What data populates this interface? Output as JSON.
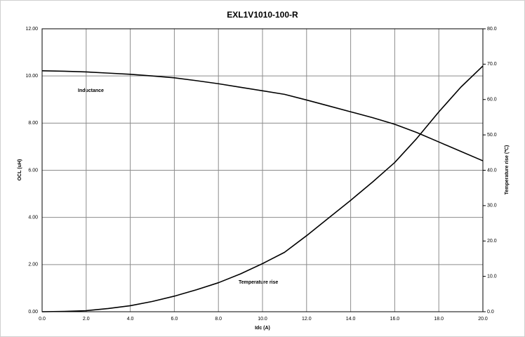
{
  "chart_data": {
    "type": "line",
    "title": "EXL1V1010-100-R",
    "x_label": "Idc (A)",
    "y_label": "OCL (uH)",
    "y2_label": "Temperature rise (℃)",
    "annotations": [
      "Inductance",
      "Temperature rise"
    ],
    "x": [
      0,
      1,
      2,
      3,
      4,
      5,
      6,
      7,
      8,
      9,
      10,
      11,
      12,
      13,
      14,
      15,
      16,
      17,
      18,
      19,
      20
    ],
    "series": [
      {
        "name": "Inductance",
        "color": "#000000",
        "axis": "y",
        "values": [
          10.22,
          10.2,
          10.17,
          10.12,
          10.07,
          10.0,
          9.92,
          9.8,
          9.67,
          9.52,
          9.37,
          9.22,
          8.98,
          8.73,
          8.48,
          8.23,
          7.95,
          7.6,
          7.2,
          6.8,
          6.4
        ]
      },
      {
        "name": "Temperature rise",
        "color": "#000000",
        "axis": "y2",
        "values": [
          0,
          0.1,
          0.3,
          0.9,
          1.7,
          2.9,
          4.4,
          6.2,
          8.2,
          10.7,
          13.6,
          16.8,
          21.5,
          26.5,
          31.5,
          36.7,
          42.2,
          49,
          56.5,
          63.5,
          69.5
        ]
      }
    ],
    "xlim": [
      0,
      20
    ],
    "xticks": [
      {
        "value": 0,
        "label": "0.0"
      },
      {
        "value": 2,
        "label": "2.0"
      },
      {
        "value": 4,
        "label": "4.0"
      },
      {
        "value": 6,
        "label": "6.0"
      },
      {
        "value": 8,
        "label": "8.0"
      },
      {
        "value": 10,
        "label": "10.0"
      },
      {
        "value": 12,
        "label": "12.0"
      },
      {
        "value": 14,
        "label": "14.0"
      },
      {
        "value": 16,
        "label": "16.0"
      },
      {
        "value": 18,
        "label": "18.0"
      },
      {
        "value": 20,
        "label": "20.0"
      }
    ],
    "ylim": [
      0,
      12
    ],
    "yticks": [
      {
        "value": 0,
        "label": "0.00"
      },
      {
        "value": 2,
        "label": "2.00"
      },
      {
        "value": 4,
        "label": "4.00"
      },
      {
        "value": 6,
        "label": "6.00"
      },
      {
        "value": 8,
        "label": "8.00"
      },
      {
        "value": 10,
        "label": "10.00"
      },
      {
        "value": 12,
        "label": "12.00"
      }
    ],
    "y2lim": [
      0,
      80
    ],
    "y2ticks": [
      {
        "value": 0,
        "label": "0.0"
      },
      {
        "value": 10,
        "label": "10.0"
      },
      {
        "value": 20,
        "label": "20.0"
      },
      {
        "value": 30,
        "label": "30.0"
      },
      {
        "value": 40,
        "label": "40.0"
      },
      {
        "value": 50,
        "label": "50.0"
      },
      {
        "value": 60,
        "label": "60.0"
      },
      {
        "value": 70,
        "label": "70.0"
      },
      {
        "value": 80,
        "label": "80.0"
      }
    ],
    "grid": true
  }
}
